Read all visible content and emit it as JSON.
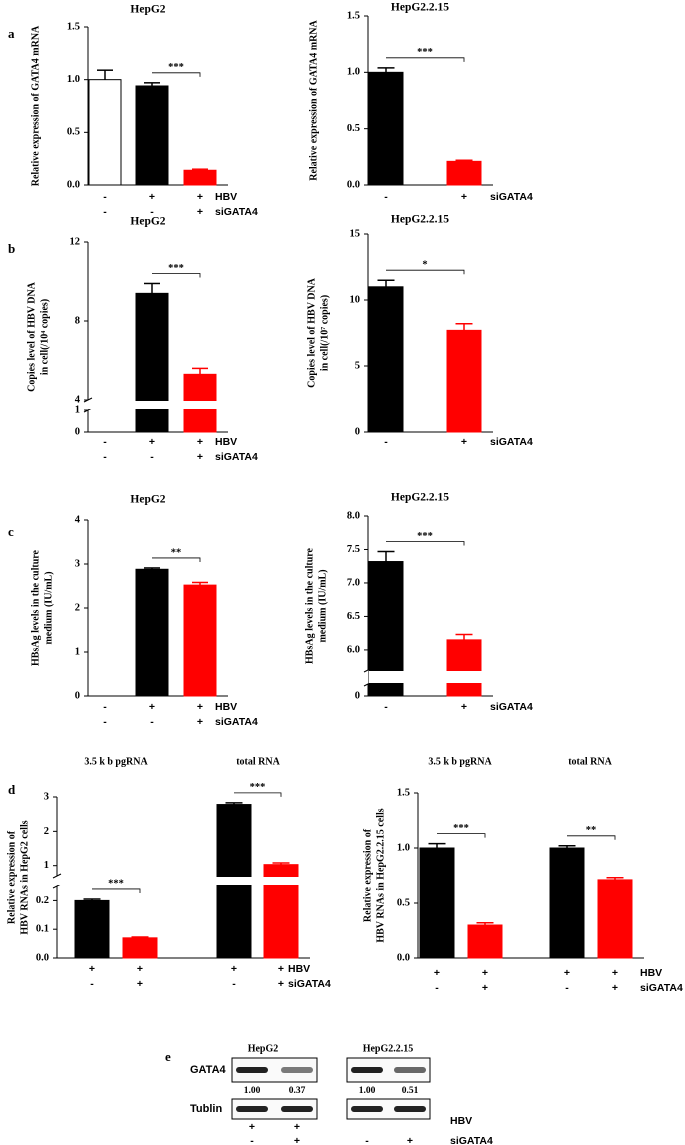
{
  "panel_labels": [
    "a",
    "b",
    "c",
    "d",
    "e"
  ],
  "chart_data": [
    {
      "type": "bar",
      "title": "HepG2",
      "y_label": [
        "Relative expression of GATA4 mRNA"
      ],
      "ylim": [
        0,
        1.5
      ],
      "yticks": [
        {
          "value": 0,
          "label": "0.0"
        },
        0.5,
        {
          "value": 1,
          "label": "1.0"
        },
        1.5
      ],
      "values": [
        1.0,
        0.94,
        0.14
      ],
      "errors": [
        0.09,
        0.03,
        0.01
      ],
      "colors": [
        "#ffffff",
        "#000000",
        "#ff0000"
      ],
      "conditions": [
        {
          "name": "HBV",
          "marks": [
            "-",
            "+",
            "+"
          ]
        },
        {
          "name": "siGATA4",
          "marks": [
            "-",
            "-",
            "+"
          ]
        }
      ],
      "significance": [
        {
          "label": "***",
          "between": [
            1,
            2
          ]
        }
      ]
    },
    {
      "type": "bar",
      "title": "HepG2.2.15",
      "y_label": [
        "Relative expression of GATA4 mRNA"
      ],
      "ylim": [
        0,
        1.5
      ],
      "yticks": [
        {
          "value": 0,
          "label": "0.0"
        },
        0.5,
        {
          "value": 1,
          "label": "1.0"
        },
        1.5
      ],
      "values": [
        1.0,
        0.21
      ],
      "errors": [
        0.04,
        0.01
      ],
      "colors": [
        "#000000",
        "#ff0000"
      ],
      "conditions": [
        {
          "name": "siGATA4",
          "marks": [
            "-",
            "+"
          ]
        }
      ],
      "significance": [
        {
          "label": "***",
          "between": [
            0,
            1
          ]
        }
      ]
    },
    {
      "type": "bar",
      "title": "HepG2",
      "y_label": [
        "Copies level of HBV DNA",
        "in cell(/10⁴ copies)"
      ],
      "ylim": [
        0,
        12
      ],
      "axis_break": [
        1,
        4
      ],
      "yticks": [
        0,
        1,
        4,
        8,
        12
      ],
      "values": [
        null,
        9.4,
        5.3
      ],
      "errors": [
        null,
        0.5,
        0.3
      ],
      "colors": [
        null,
        "#000000",
        "#ff0000"
      ],
      "conditions": [
        {
          "name": "HBV",
          "marks": [
            "-",
            "+",
            "+"
          ]
        },
        {
          "name": "siGATA4",
          "marks": [
            "-",
            "-",
            "+"
          ]
        }
      ],
      "significance": [
        {
          "label": "***",
          "between": [
            1,
            2
          ]
        }
      ]
    },
    {
      "type": "bar",
      "title": "HepG2.2.15",
      "y_label": [
        "Copies level of HBV DNA",
        "in cell(/10⁷ copies)"
      ],
      "ylim": [
        0,
        15
      ],
      "yticks": [
        0,
        5,
        10,
        15
      ],
      "values": [
        11.0,
        7.7
      ],
      "errors": [
        0.5,
        0.5
      ],
      "colors": [
        "#000000",
        "#ff0000"
      ],
      "conditions": [
        {
          "name": "siGATA4",
          "marks": [
            "-",
            "+"
          ]
        }
      ],
      "significance": [
        {
          "label": "*",
          "between": [
            0,
            1
          ]
        }
      ]
    },
    {
      "type": "bar",
      "title": "HepG2",
      "y_label": [
        "HBsAg levels in the culture",
        "medium (IU/mL)"
      ],
      "ylim": [
        0,
        4
      ],
      "yticks": [
        0,
        1,
        2,
        3,
        4
      ],
      "values": [
        null,
        2.88,
        2.52
      ],
      "errors": [
        null,
        0.03,
        0.06
      ],
      "colors": [
        null,
        "#000000",
        "#ff0000"
      ],
      "conditions": [
        {
          "name": "HBV",
          "marks": [
            "-",
            "+",
            "+"
          ]
        },
        {
          "name": "siGATA4",
          "marks": [
            "-",
            "-",
            "+"
          ]
        }
      ],
      "significance": [
        {
          "label": "**",
          "between": [
            1,
            2
          ]
        }
      ]
    },
    {
      "type": "bar",
      "title": "HepG2.2.15",
      "y_label": [
        "HBsAg levels in the culture",
        "medium (IU/mL)"
      ],
      "ylim": [
        0,
        8
      ],
      "axis_break": [
        0.3,
        5.7
      ],
      "yticks": [
        0,
        {
          "value": 6,
          "label": "6.0"
        },
        6.5,
        {
          "value": 7,
          "label": "7.0"
        },
        7.5,
        {
          "value": 8,
          "label": "8.0"
        }
      ],
      "values": [
        7.32,
        6.15
      ],
      "errors": [
        0.15,
        0.08
      ],
      "colors": [
        "#000000",
        "#ff0000"
      ],
      "conditions": [
        {
          "name": "siGATA4",
          "marks": [
            "-",
            "+"
          ]
        }
      ],
      "significance": [
        {
          "label": "***",
          "between": [
            0,
            1
          ]
        }
      ]
    },
    {
      "type": "bar",
      "group_labels": [
        "3.5 k b pgRNA",
        "total RNA"
      ],
      "y_label": [
        "Relative expression of",
        "HBV RNAs in HepG2 cells"
      ],
      "ylim": [
        0,
        3
      ],
      "axis_break": [
        0.25,
        0.7
      ],
      "yticks": [
        {
          "value": 0,
          "label": "0.0"
        },
        0.1,
        0.2,
        1,
        2,
        3
      ],
      "values": [
        0.2,
        0.07,
        2.78,
        1.03
      ],
      "errors": [
        0.005,
        0.003,
        0.05,
        0.05
      ],
      "colors": [
        "#000000",
        "#ff0000",
        "#000000",
        "#ff0000"
      ],
      "conditions": [
        {
          "name": "HBV",
          "marks": [
            "+",
            "+",
            "+",
            "+"
          ]
        },
        {
          "name": "siGATA4",
          "marks": [
            "-",
            "+",
            "-",
            "+"
          ]
        }
      ],
      "significance": [
        {
          "label": "***",
          "between": [
            0,
            1
          ]
        },
        {
          "label": "***",
          "between": [
            2,
            3
          ]
        }
      ]
    },
    {
      "type": "bar",
      "group_labels": [
        "3.5 k b pgRNA",
        "total RNA"
      ],
      "y_label": [
        "Relative expression of",
        "HBV RNAs in HepG2.2.15 cells"
      ],
      "ylim": [
        0,
        1.5
      ],
      "yticks": [
        {
          "value": 0,
          "label": "0.0"
        },
        0.5,
        {
          "value": 1,
          "label": "1.0"
        },
        1.5
      ],
      "values": [
        1.0,
        0.3,
        1.0,
        0.71
      ],
      "errors": [
        0.04,
        0.02,
        0.02,
        0.02
      ],
      "colors": [
        "#000000",
        "#ff0000",
        "#000000",
        "#ff0000"
      ],
      "conditions": [
        {
          "name": "HBV",
          "marks": [
            "+",
            "+",
            "+",
            "+"
          ]
        },
        {
          "name": "siGATA4",
          "marks": [
            "-",
            "+",
            "-",
            "+"
          ]
        }
      ],
      "significance": [
        {
          "label": "***",
          "between": [
            0,
            1
          ]
        },
        {
          "label": "**",
          "between": [
            2,
            3
          ]
        }
      ]
    }
  ],
  "blot": {
    "titles": [
      "HepG2",
      "HepG2.2.15"
    ],
    "rows": [
      "GATA4",
      "Tublin"
    ],
    "values": [
      1.0,
      0.37,
      1.0,
      0.51
    ],
    "value_labels": [
      "1.00",
      "0.37",
      "1.00",
      "0.51"
    ],
    "conditions": [
      {
        "name": "HBV",
        "marks": [
          "+",
          "+",
          null,
          null
        ]
      },
      {
        "name": "siGATA4",
        "marks": [
          "-",
          "+",
          "-",
          "+"
        ]
      }
    ]
  }
}
